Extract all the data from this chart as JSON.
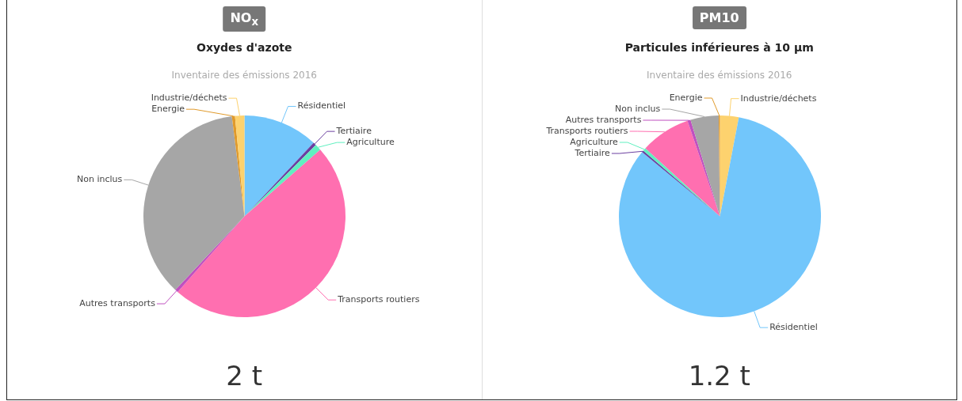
{
  "chart_data": [
    {
      "type": "pie",
      "title": "NO$_{x}$",
      "subtitle": "Oxydes d'azote",
      "annotations": [
        "Inventaire des émissions 2016",
        "2 t"
      ],
      "legend": false,
      "categories": [
        "Résidentiel",
        "Tertiaire",
        "Agriculture",
        "Transports routiers",
        "Autres transports",
        "Non inclus",
        "Energie",
        "Industrie/déchets"
      ],
      "values": [
        12,
        0.5,
        1,
        48,
        0.5,
        36,
        0.5,
        1.5
      ],
      "colors": [
        "#72c6fb",
        "#6b3fa0",
        "#5ff0c0",
        "#ff6fb0",
        "#c050c0",
        "#a6a6a6",
        "#e09a2b",
        "#fdd26e"
      ]
    },
    {
      "type": "pie",
      "title": "PM10",
      "subtitle": "Particules inférieures à 10 µm",
      "annotations": [
        "Inventaire des émissions 2016",
        "1.2 t"
      ],
      "legend": false,
      "categories": [
        "Industrie/déchets",
        "Résidentiel",
        "Tertiaire",
        "Agriculture",
        "Transports routiers",
        "Autres transports",
        "Non inclus",
        "Energie"
      ],
      "values": [
        3,
        83,
        0.3,
        0.5,
        8,
        0.5,
        4.5,
        0.2
      ],
      "colors": [
        "#fdd26e",
        "#72c6fb",
        "#6b3fa0",
        "#5ff0c0",
        "#ff6fb0",
        "#c050c0",
        "#a6a6a6",
        "#e09a2b"
      ]
    }
  ]
}
